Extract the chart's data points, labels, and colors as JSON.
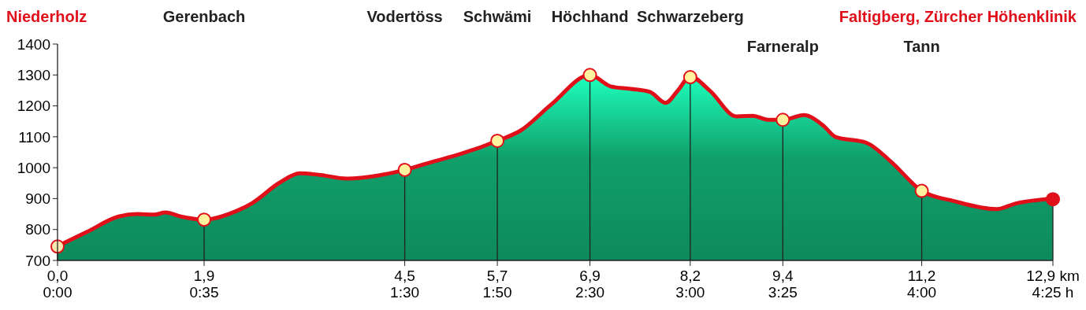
{
  "chart_data": {
    "type": "area",
    "xlim": [
      0,
      12.9
    ],
    "xticks": [
      {
        "value": 0,
        "label": "0,0"
      },
      {
        "value": 1.9,
        "label": "1,9"
      },
      {
        "value": 4.5,
        "label": "4,5"
      },
      {
        "value": 5.7,
        "label": "5,7"
      },
      {
        "value": 6.9,
        "label": "6,9"
      },
      {
        "value": 8.2,
        "label": "8,2"
      },
      {
        "value": 9.4,
        "label": "9,4"
      },
      {
        "value": 11.2,
        "label": "11,2"
      },
      {
        "value": 12.9,
        "label": "12,9 km"
      }
    ],
    "ylim": [
      700,
      1400
    ],
    "yticks": [
      700,
      800,
      900,
      1000,
      1100,
      1200,
      1300,
      1400
    ],
    "series": [
      {
        "color": "#0e8a5c",
        "x": [
          0,
          0.38,
          0.79,
          1.04,
          1.25,
          1.4,
          1.6,
          1.9,
          2.32,
          2.52,
          2.88,
          3.14,
          3.39,
          3.75,
          4.16,
          4.5,
          4.87,
          5.23,
          5.7,
          6.0,
          6.4,
          6.9,
          7.17,
          7.43,
          7.68,
          7.88,
          8.04,
          8.2,
          8.45,
          8.8,
          9.01,
          9.21,
          9.4,
          9.67,
          9.93,
          10.08,
          10.49,
          10.8,
          11.2,
          11.62,
          12.17,
          12.43,
          12.9
        ],
        "values": [
          746,
          792,
          842,
          850,
          848,
          855,
          842,
          832,
          860,
          885,
          952,
          982,
          977,
          965,
          975,
          993,
          1020,
          1045,
          1087,
          1120,
          1205,
          1300,
          1263,
          1255,
          1245,
          1210,
          1250,
          1295,
          1250,
          1166,
          1168,
          1155,
          1155,
          1170,
          1135,
          1100,
          1080,
          1020,
          925,
          892,
          866,
          885,
          900
        ]
      },
      {
        "type": "lollipop",
        "colors": [
          "#fde9b0",
          "#fff3a0",
          "#fff3a0",
          "#fff3a0",
          "#fff3a0",
          "#fff3a0",
          "#fff3a0",
          "#fff3a0",
          "#e0101a"
        ],
        "x": [
          0,
          1.9,
          4.5,
          5.7,
          6.9,
          8.2,
          9.4,
          11.2,
          12.9
        ],
        "values": [
          745,
          832,
          993,
          1087,
          1300,
          1293,
          1155,
          925,
          898
        ]
      }
    ],
    "annotations": [
      "Niederholz",
      "Gerenbach",
      "Vodertöss",
      "Schwämi",
      "Höchhand",
      "Schwarzeberg",
      "Farneralp",
      "Tann",
      "Faltigberg, Zürcher Höhenklinik",
      "0:00",
      "0:35",
      "1:30",
      "1:50",
      "2:30",
      "3:00",
      "3:25",
      "4:00",
      "4:25 h"
    ]
  }
}
